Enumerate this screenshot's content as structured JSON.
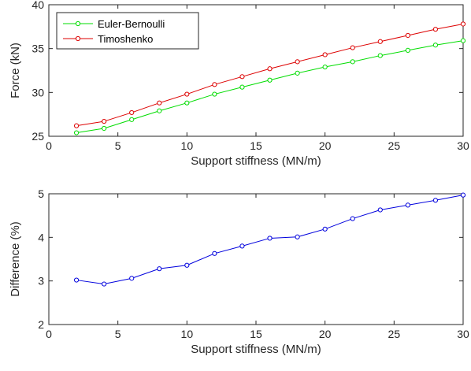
{
  "chart_data": [
    {
      "type": "line",
      "title": "",
      "xlabel": "Support stiffness (MN/m)",
      "ylabel": "Force (kN)",
      "xlim": [
        0,
        30
      ],
      "ylim": [
        25,
        40
      ],
      "xticks": [
        "0",
        "5",
        "10",
        "15",
        "20",
        "25",
        "30"
      ],
      "yticks": [
        "25",
        "30",
        "35",
        "40"
      ],
      "grid": false,
      "legend_position": "top-left",
      "x": [
        2,
        4,
        6,
        8,
        10,
        12,
        14,
        16,
        18,
        20,
        22,
        24,
        26,
        28,
        30
      ],
      "series": [
        {
          "name": "Euler-Bernoulli",
          "color": "#00dd00",
          "marker": "circle",
          "values": [
            25.4,
            25.9,
            26.9,
            27.9,
            28.8,
            29.8,
            30.6,
            31.4,
            32.2,
            32.9,
            33.5,
            34.2,
            34.8,
            35.4,
            35.9
          ]
        },
        {
          "name": "Timoshenko",
          "color": "#dd0000",
          "marker": "circle",
          "values": [
            26.2,
            26.7,
            27.7,
            28.8,
            29.8,
            30.9,
            31.8,
            32.7,
            33.5,
            34.3,
            35.1,
            35.8,
            36.5,
            37.2,
            37.8
          ]
        }
      ]
    },
    {
      "type": "line",
      "title": "",
      "xlabel": "Support stiffness (MN/m)",
      "ylabel": "Difference (%)",
      "xlim": [
        0,
        30
      ],
      "ylim": [
        2,
        5
      ],
      "xticks": [
        "0",
        "5",
        "10",
        "15",
        "20",
        "25",
        "30"
      ],
      "yticks": [
        "2",
        "3",
        "4",
        "5"
      ],
      "grid": false,
      "x": [
        2,
        4,
        6,
        8,
        10,
        12,
        14,
        16,
        18,
        20,
        22,
        24,
        26,
        28,
        30
      ],
      "series": [
        {
          "color": "#0000dd",
          "marker": "circle",
          "values": [
            3.02,
            2.93,
            3.06,
            3.28,
            3.36,
            3.63,
            3.8,
            3.98,
            4.01,
            4.19,
            4.43,
            4.63,
            4.74,
            4.85,
            4.97
          ]
        }
      ]
    }
  ]
}
